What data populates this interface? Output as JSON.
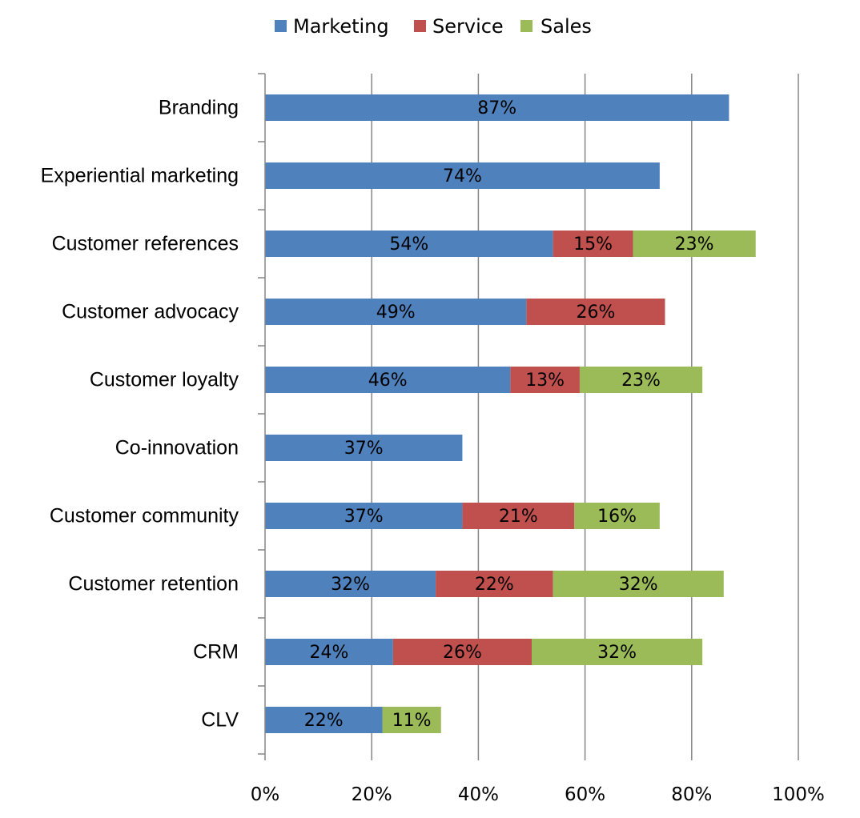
{
  "chart_data": {
    "type": "bar",
    "orientation": "horizontal",
    "stacked": true,
    "categories": [
      "Branding",
      "Experiential marketing",
      "Customer references",
      "Customer advocacy",
      "Customer loyalty",
      "Co-innovation",
      "Customer community",
      "Customer retention",
      "CRM",
      "CLV"
    ],
    "series": [
      {
        "name": "Marketing",
        "color": "#4f81bd",
        "values": [
          87,
          74,
          54,
          49,
          46,
          37,
          37,
          32,
          24,
          22
        ]
      },
      {
        "name": "Service",
        "color": "#c0504d",
        "values": [
          null,
          null,
          15,
          26,
          13,
          null,
          21,
          22,
          26,
          null
        ]
      },
      {
        "name": "Sales",
        "color": "#9bbb59",
        "values": [
          null,
          null,
          23,
          null,
          23,
          null,
          16,
          32,
          32,
          11
        ]
      }
    ],
    "xlim": [
      0,
      100
    ],
    "x_ticks": [
      "0%",
      "20%",
      "40%",
      "60%",
      "80%",
      "100%"
    ],
    "x_tick_values": [
      0,
      20,
      40,
      60,
      80,
      100
    ],
    "value_suffix": "%",
    "grid": "vertical",
    "legend_position": "top"
  }
}
